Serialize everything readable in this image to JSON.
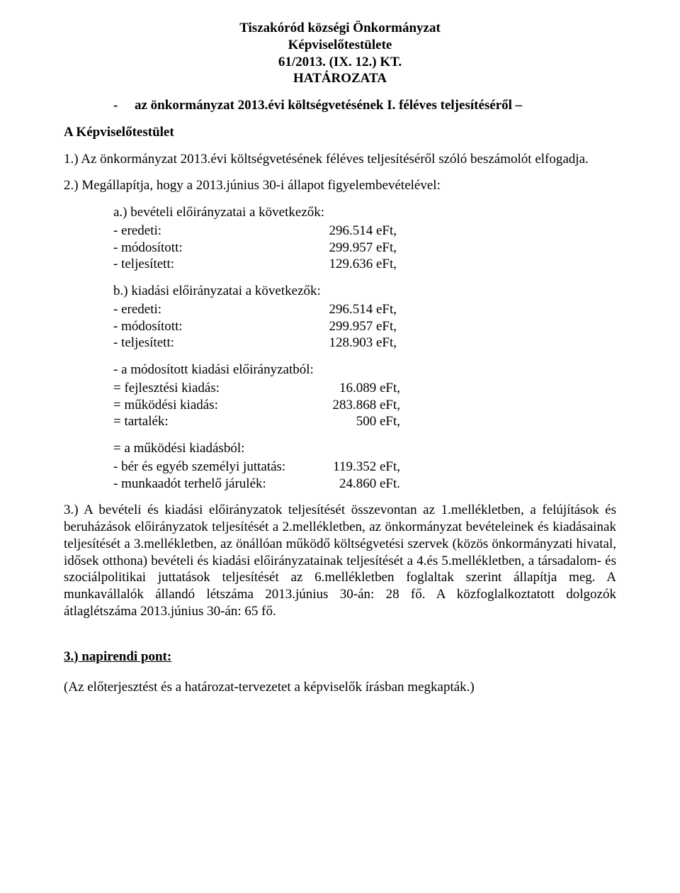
{
  "header": {
    "line1": "Tiszakóród községi Önkormányzat",
    "line2": "Képviselőtestülete",
    "line3": "61/2013. (IX. 12.) KT.",
    "line4": "HATÁROZATA"
  },
  "subject": "az önkormányzat 2013.évi költségvetésének I. féléves teljesítéséről –",
  "lead": "A Képviselőtestület",
  "p1": "1.) Az önkormányzat 2013.évi költségvetésének féléves teljesítéséről szóló beszámolót elfogadja.",
  "p2": "2.) Megállapítja, hogy a 2013.június 30-i állapot figyelembevételével:",
  "a": {
    "lead": "a.) bevételi előirányzatai a következők:",
    "rows": [
      {
        "label": "- eredeti:",
        "value": "296.514 eFt,"
      },
      {
        "label": "- módosított:",
        "value": "299.957 eFt,"
      },
      {
        "label": "- teljesített:",
        "value": "129.636 eFt,"
      }
    ]
  },
  "b": {
    "lead": "b.) kiadási előirányzatai a következők:",
    "rows": [
      {
        "label": "- eredeti:",
        "value": "296.514 eFt,"
      },
      {
        "label": "- módosított:",
        "value": "299.957 eFt,"
      },
      {
        "label": "- teljesített:",
        "value": "128.903 eFt,"
      }
    ]
  },
  "c": {
    "lead": "- a módosított kiadási előirányzatból:",
    "rows": [
      {
        "label": "= fejlesztési kiadás:",
        "value": "16.089 eFt,"
      },
      {
        "label": "= működési kiadás:",
        "value": "283.868 eFt,"
      },
      {
        "label": "= tartalék:",
        "value": "500 eFt,"
      }
    ]
  },
  "d": {
    "lead": "= a működési kiadásból:",
    "rows": [
      {
        "label": "- bér és egyéb személyi juttatás:",
        "value": "119.352 eFt,"
      },
      {
        "label": "- munkaadót terhelő járulék:",
        "value": "24.860 eFt."
      }
    ]
  },
  "p3": "3.) A bevételi és kiadási előirányzatok teljesítését összevontan az 1.mellékletben, a felújítások és beruházások előirányzatok teljesítését a 2.mellékletben, az önkormányzat bevételeinek és kiadásainak teljesítését a 3.mellékletben, az önállóan működő költségvetési szervek (közös önkormányzati hivatal, idősek otthona) bevételi és kiadási előirányzatainak teljesítését a 4.és 5.mellékletben, a társadalom- és szociálpolitikai juttatások teljesítését az 6.mellékletben foglaltak szerint állapítja meg. A munkavállalók állandó létszáma 2013.június 30-án: 28 fő. A közfoglalkoztatott dolgozók átlaglétszáma 2013.június 30-án: 65 fő.",
  "agenda": "3.) napirendi pont:",
  "closing": "(Az előterjesztést és a határozat-tervezetet a képviselők írásban megkapták.)"
}
